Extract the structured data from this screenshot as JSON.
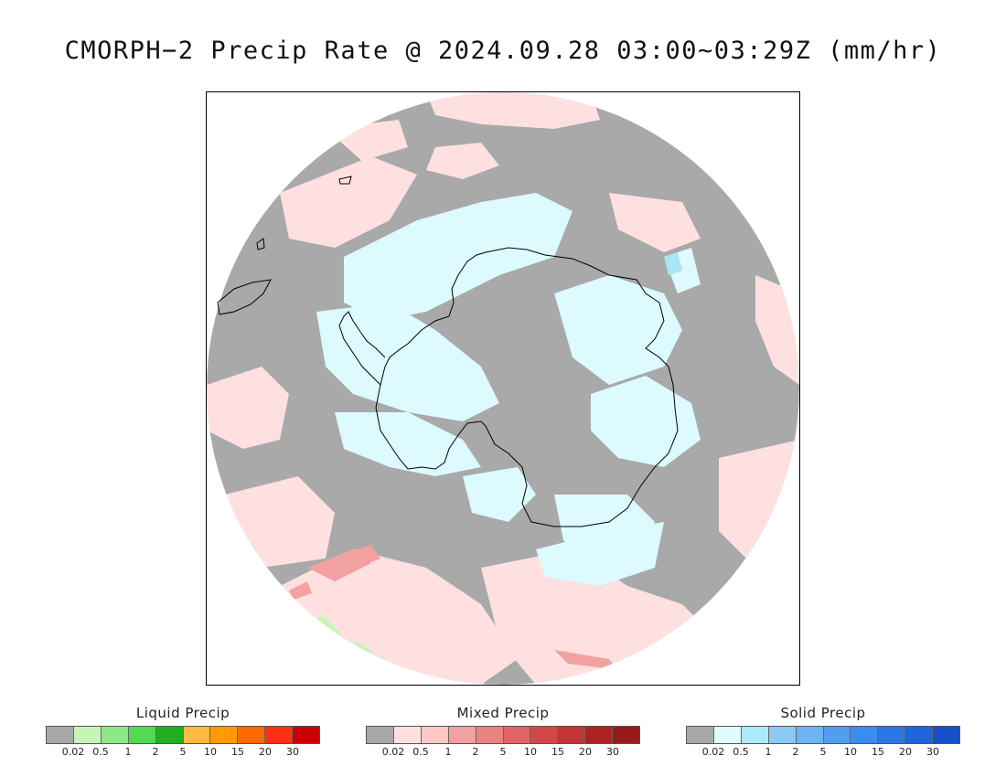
{
  "title": "CMORPH−2 Precip Rate @ 2024.09.28 03:00~03:29Z (mm/hr)",
  "map": {
    "projection": "south-polar-stereographic",
    "background_color": "#a9a9a9",
    "colors": {
      "no_precip": "#a9a9a9",
      "mixed_light": "#ffe0e0",
      "mixed_moderate": "#f2a0a0",
      "solid_light": "#dcfaff",
      "solid_moderate": "#a8e6f5",
      "liquid_light": "#c6f5b6",
      "coast": "#000000"
    }
  },
  "legends": [
    {
      "title": "Liquid Precip",
      "colors": [
        "#a9a9a9",
        "#c6f5b6",
        "#8de887",
        "#50dc50",
        "#1fb01f",
        "#ffbb40",
        "#ff9b00",
        "#ff6a00",
        "#ff3010",
        "#c80000"
      ],
      "ticks": [
        "0.02",
        "0.5",
        "1",
        "2",
        "5",
        "10",
        "15",
        "20",
        "30"
      ]
    },
    {
      "title": "Mixed Precip",
      "colors": [
        "#a9a9a9",
        "#ffe0e0",
        "#ffc6c6",
        "#f2a0a0",
        "#ea8282",
        "#e06464",
        "#d24848",
        "#c43434",
        "#b02222",
        "#9a1a1a"
      ],
      "ticks": [
        "0.02",
        "0.5",
        "1",
        "2",
        "5",
        "10",
        "15",
        "20",
        "30"
      ]
    },
    {
      "title": "Solid Precip",
      "colors": [
        "#a9a9a9",
        "#e0fcff",
        "#aaeafa",
        "#8ccaf5",
        "#6eb4f2",
        "#509ef0",
        "#3a8cee",
        "#2a78e6",
        "#1e64dc",
        "#1450c8"
      ],
      "ticks": [
        "0.02",
        "0.5",
        "1",
        "2",
        "5",
        "10",
        "15",
        "20",
        "30"
      ]
    }
  ]
}
